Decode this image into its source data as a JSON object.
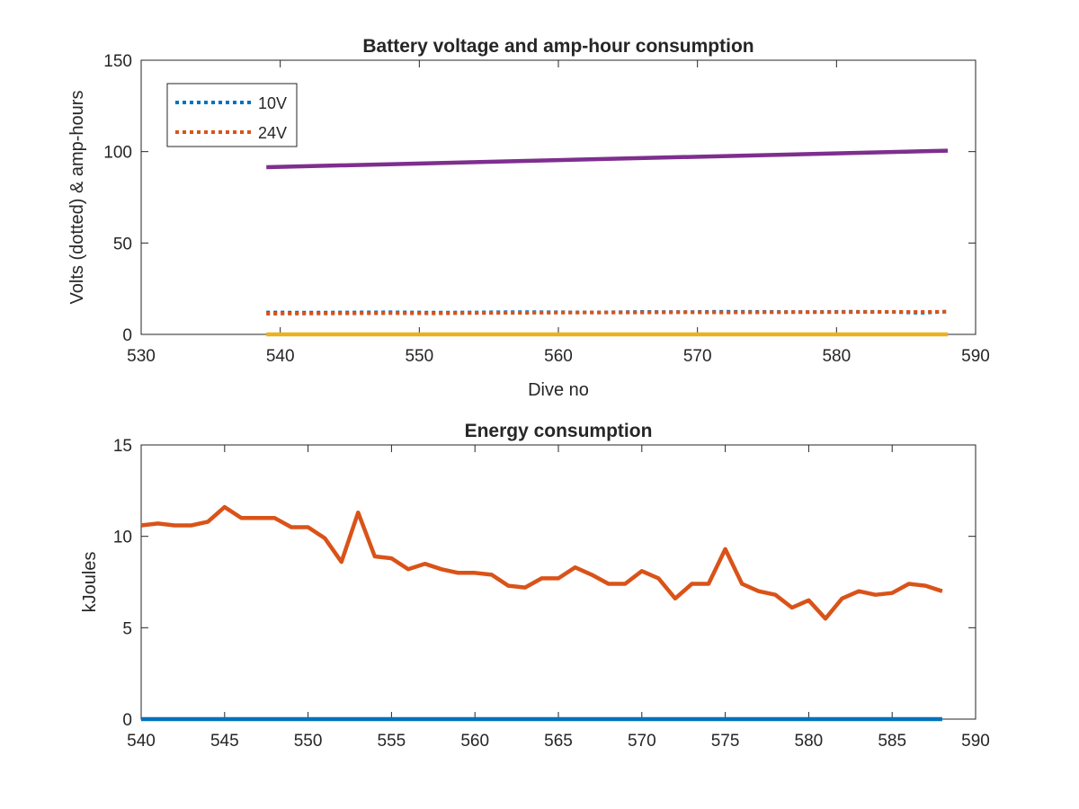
{
  "chart_data": [
    {
      "type": "line",
      "title": "Battery voltage and amp-hour consumption",
      "xlabel": "Dive no",
      "ylabel": "Volts (dotted) & amp-hours",
      "xlim": [
        530,
        590
      ],
      "ylim": [
        0,
        150
      ],
      "xticks": [
        "530",
        "540",
        "550",
        "560",
        "570",
        "580",
        "590"
      ],
      "yticks": [
        "0",
        "50",
        "100",
        "150"
      ],
      "legend_position": "top-left",
      "series": [
        {
          "name": "10V",
          "style": "dotted",
          "color": "#0072BD",
          "in_legend": true,
          "x": [
            539,
            542,
            545,
            548,
            551,
            554,
            557,
            560,
            563,
            566,
            569,
            572,
            575,
            578,
            581,
            584,
            586,
            588
          ],
          "y": [
            12.0,
            11.9,
            12.0,
            12.1,
            11.9,
            12.0,
            12.2,
            12.1,
            12.0,
            12.3,
            12.2,
            12.4,
            12.3,
            12.2,
            12.4,
            12.3,
            11.8,
            12.5
          ]
        },
        {
          "name": "24V",
          "style": "dotted",
          "color": "#D95319",
          "in_legend": true,
          "x": [
            539,
            542,
            545,
            548,
            551,
            554,
            557,
            560,
            563,
            566,
            569,
            572,
            575,
            578,
            581,
            584,
            586,
            588
          ],
          "y": [
            11.3,
            11.4,
            11.5,
            11.6,
            11.5,
            11.7,
            11.8,
            11.9,
            12.0,
            12.0,
            12.1,
            12.0,
            12.1,
            12.2,
            12.2,
            12.3,
            12.3,
            12.4
          ]
        },
        {
          "style": "solid",
          "color": "#7E2F8E",
          "in_legend": false,
          "x": [
            539,
            588
          ],
          "y": [
            91.5,
            100.5
          ]
        },
        {
          "style": "solid",
          "color": "#EDB120",
          "in_legend": false,
          "x": [
            539,
            588
          ],
          "y": [
            0,
            0
          ]
        }
      ]
    },
    {
      "type": "line",
      "title": "Energy consumption",
      "xlabel": "",
      "ylabel": "kJoules",
      "xlim": [
        540,
        590
      ],
      "ylim": [
        0,
        15
      ],
      "xticks": [
        "540",
        "545",
        "550",
        "555",
        "560",
        "565",
        "570",
        "575",
        "580",
        "585",
        "590"
      ],
      "yticks": [
        "0",
        "5",
        "10",
        "15"
      ],
      "series": [
        {
          "style": "solid",
          "color": "#0072BD",
          "x": [
            540,
            588
          ],
          "y": [
            0,
            0
          ]
        },
        {
          "style": "solid",
          "color": "#D95319",
          "x": [
            540,
            541,
            542,
            543,
            544,
            545,
            546,
            547,
            548,
            549,
            550,
            551,
            552,
            553,
            554,
            555,
            556,
            557,
            558,
            559,
            560,
            561,
            562,
            563,
            564,
            565,
            566,
            567,
            568,
            569,
            570,
            571,
            572,
            573,
            574,
            575,
            576,
            577,
            578,
            579,
            580,
            581,
            582,
            583,
            584,
            585,
            586,
            587,
            588
          ],
          "y": [
            10.6,
            10.7,
            10.6,
            10.6,
            10.8,
            11.6,
            11.0,
            11.0,
            11.0,
            10.5,
            10.5,
            9.9,
            8.6,
            11.3,
            8.9,
            8.8,
            8.2,
            8.5,
            8.2,
            8.0,
            8.0,
            7.9,
            7.3,
            7.2,
            7.7,
            7.7,
            8.3,
            7.9,
            7.4,
            7.4,
            8.1,
            7.7,
            6.6,
            7.4,
            7.4,
            9.3,
            7.4,
            7.0,
            6.8,
            6.1,
            6.5,
            5.5,
            6.6,
            7.0,
            6.8,
            6.9,
            7.4,
            7.3,
            7.0
          ]
        }
      ]
    }
  ]
}
